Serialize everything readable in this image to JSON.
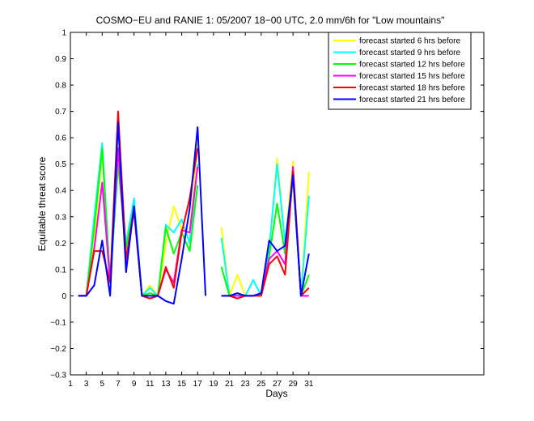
{
  "chart_data": {
    "type": "line",
    "title": "COSMO−EU and RANIE 1: 05/2007 18−00 UTC, 2.0 mm/6h for \"Low mountains\"",
    "xlabel": "Days",
    "ylabel": "Equitable threat score",
    "xlim": [
      1,
      53
    ],
    "ylim": [
      -0.3,
      1
    ],
    "x_ticks": [
      1,
      3,
      5,
      7,
      9,
      11,
      13,
      15,
      17,
      19,
      21,
      23,
      25,
      27,
      29,
      31
    ],
    "y_ticks": [
      -0.3,
      -0.2,
      -0.1,
      0,
      0.1,
      0.2,
      0.3,
      0.4,
      0.5,
      0.6,
      0.7,
      0.8,
      0.9,
      1
    ],
    "y_tick_labels": [
      "−0.3",
      "−0.2",
      "−0.1",
      "0",
      "0.1",
      "0.2",
      "0.3",
      "0.4",
      "0.5",
      "0.6",
      "0.7",
      "0.8",
      "0.9",
      "1"
    ],
    "x": [
      2,
      3,
      4,
      5,
      6,
      7,
      8,
      9,
      10,
      11,
      12,
      13,
      14,
      15,
      16,
      17,
      18,
      19,
      20,
      21,
      22,
      23,
      24,
      25,
      26,
      27,
      28,
      29,
      30,
      31
    ],
    "grid": false,
    "legend_position": "top-right",
    "series": [
      {
        "name": "forecast started 6 hrs before",
        "color": "#ffff00",
        "values": [
          0,
          0,
          0.2,
          0.55,
          0.05,
          0.62,
          0.2,
          0.35,
          0,
          0.04,
          0,
          0.2,
          0.34,
          0.25,
          0.24,
          0.58,
          null,
          null,
          0.26,
          0,
          0.08,
          0,
          0,
          0,
          0.17,
          0.52,
          0.2,
          0.51,
          0,
          0.47
        ]
      },
      {
        "name": "forecast started 9 hrs before",
        "color": "#00ffff",
        "values": [
          0,
          0,
          0.3,
          0.58,
          0.05,
          0.5,
          0.2,
          0.37,
          0,
          0.03,
          0,
          0.27,
          0.24,
          0.29,
          0.2,
          0.5,
          null,
          null,
          0.22,
          0,
          0,
          0,
          0.06,
          0,
          0.18,
          0.5,
          0.2,
          0.46,
          0,
          0.38
        ]
      },
      {
        "name": "forecast started 12 hrs before",
        "color": "#00ff00",
        "values": [
          0,
          0,
          0.26,
          0.56,
          0.05,
          0.5,
          0.18,
          0.34,
          0,
          0.01,
          0,
          0.26,
          0.16,
          0.24,
          0.17,
          0.42,
          null,
          null,
          0.11,
          0,
          0,
          0,
          0,
          0.01,
          0.15,
          0.35,
          0.16,
          0.45,
          0,
          0.08
        ]
      },
      {
        "name": "forecast started 15 hrs before",
        "color": "#ff00ff",
        "values": [
          0,
          0,
          0.18,
          0.43,
          0.05,
          0.56,
          0.13,
          0.34,
          0,
          -0.01,
          0,
          0.1,
          0.05,
          0.25,
          0.24,
          0.49,
          null,
          null,
          0,
          0,
          0,
          0,
          0,
          0.01,
          0.14,
          0.17,
          0.12,
          0.49,
          0,
          0
        ]
      },
      {
        "name": "forecast started 18 hrs before",
        "color": "#ff0000",
        "values": [
          0,
          0,
          0.17,
          0.17,
          0.05,
          0.7,
          0.14,
          0.32,
          0,
          -0.01,
          0,
          0.11,
          0.03,
          0.24,
          0.37,
          0.56,
          null,
          null,
          0,
          0,
          -0.01,
          0,
          0,
          0,
          0.12,
          0.15,
          0.08,
          0.47,
          0,
          0.03
        ]
      },
      {
        "name": "forecast started 21 hrs before",
        "color": "#0000ff",
        "values": [
          0,
          0,
          0.04,
          0.21,
          0,
          0.66,
          0.09,
          0.34,
          0,
          0,
          0,
          -0.02,
          -0.03,
          0.14,
          0.33,
          0.64,
          0,
          null,
          0,
          0,
          0.01,
          0,
          0,
          0.01,
          0.21,
          0.17,
          0.19,
          0.46,
          0,
          0.16
        ]
      }
    ]
  }
}
